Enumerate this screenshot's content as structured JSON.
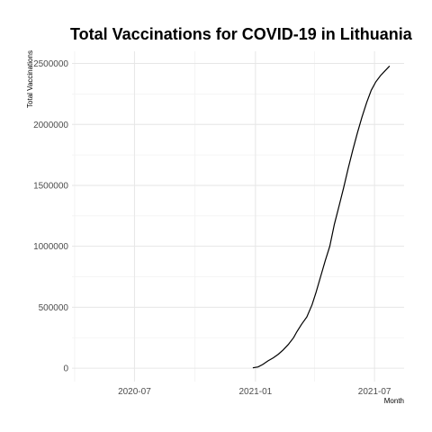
{
  "chart_data": {
    "type": "line",
    "title": "Total Vaccinations for COVID-19 in Lithuania",
    "xlabel": "Month",
    "ylabel": "Total Vaccinations",
    "x_range": [
      "2020-03-28",
      "2021-08-15"
    ],
    "ylim": [
      -110000,
      2600000
    ],
    "x_ticks": [
      {
        "date": "2020-07-01",
        "label": "2020-07"
      },
      {
        "date": "2021-01-01",
        "label": "2021-01"
      },
      {
        "date": "2021-07-01",
        "label": "2021-07"
      }
    ],
    "x_minor_ticks": [
      "2020-04-01",
      "2020-10-01",
      "2021-04-01"
    ],
    "y_ticks": [
      0,
      500000,
      1000000,
      1500000,
      2000000,
      2500000
    ],
    "y_tick_labels": [
      "0",
      "500000",
      "1000000",
      "1500000",
      "2000000",
      "2500000"
    ],
    "y_minor_ticks": [
      250000,
      750000,
      1250000,
      1750000,
      2250000
    ],
    "grid": true,
    "series": [
      {
        "color": "#000000",
        "x": [
          "2020-12-28",
          "2021-01-05",
          "2021-01-12",
          "2021-01-20",
          "2021-01-28",
          "2021-02-05",
          "2021-02-12",
          "2021-02-20",
          "2021-02-28",
          "2021-03-05",
          "2021-03-12",
          "2021-03-20",
          "2021-03-28",
          "2021-04-03",
          "2021-04-10",
          "2021-04-17",
          "2021-04-24",
          "2021-05-01",
          "2021-05-08",
          "2021-05-15",
          "2021-05-22",
          "2021-05-29",
          "2021-06-05",
          "2021-06-12",
          "2021-06-19",
          "2021-06-26",
          "2021-07-03",
          "2021-07-10",
          "2021-07-17",
          "2021-07-24"
        ],
        "y": [
          3000,
          10000,
          30000,
          60000,
          85000,
          115000,
          150000,
          195000,
          250000,
          300000,
          360000,
          420000,
          520000,
          620000,
          750000,
          880000,
          1000000,
          1180000,
          1330000,
          1480000,
          1640000,
          1790000,
          1930000,
          2060000,
          2180000,
          2280000,
          2350000,
          2400000,
          2440000,
          2480000
        ]
      }
    ]
  }
}
